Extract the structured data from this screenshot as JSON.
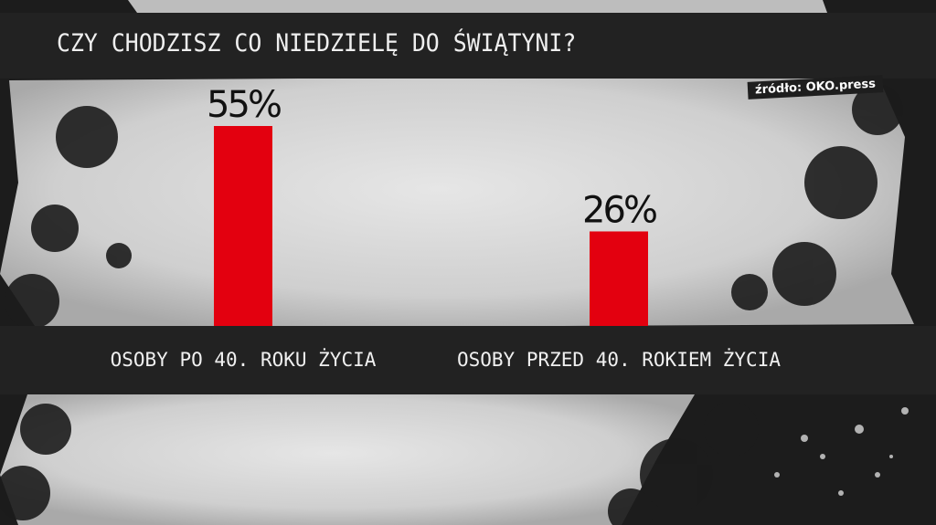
{
  "header": {
    "title": "CZY CHODZISZ CO NIEDZIELĘ DO ŚWIĄTYNI?",
    "source": "źródło: OKO.press"
  },
  "colors": {
    "bar": "#e3000f",
    "band": "#222222"
  },
  "chart_data": {
    "type": "bar",
    "title": "CZY CHODZISZ CO NIEDZIELĘ DO ŚWIĄTYNI?",
    "categories": [
      "OSOBY PO 40. ROKU ŻYCIA",
      "OSOBY PRZED 40. ROKIEM ŻYCIA"
    ],
    "values": [
      55,
      26
    ],
    "value_labels": [
      "55%",
      "26%"
    ],
    "unit": "%",
    "ylim": [
      0,
      100
    ],
    "grid": false,
    "legend": "none"
  }
}
